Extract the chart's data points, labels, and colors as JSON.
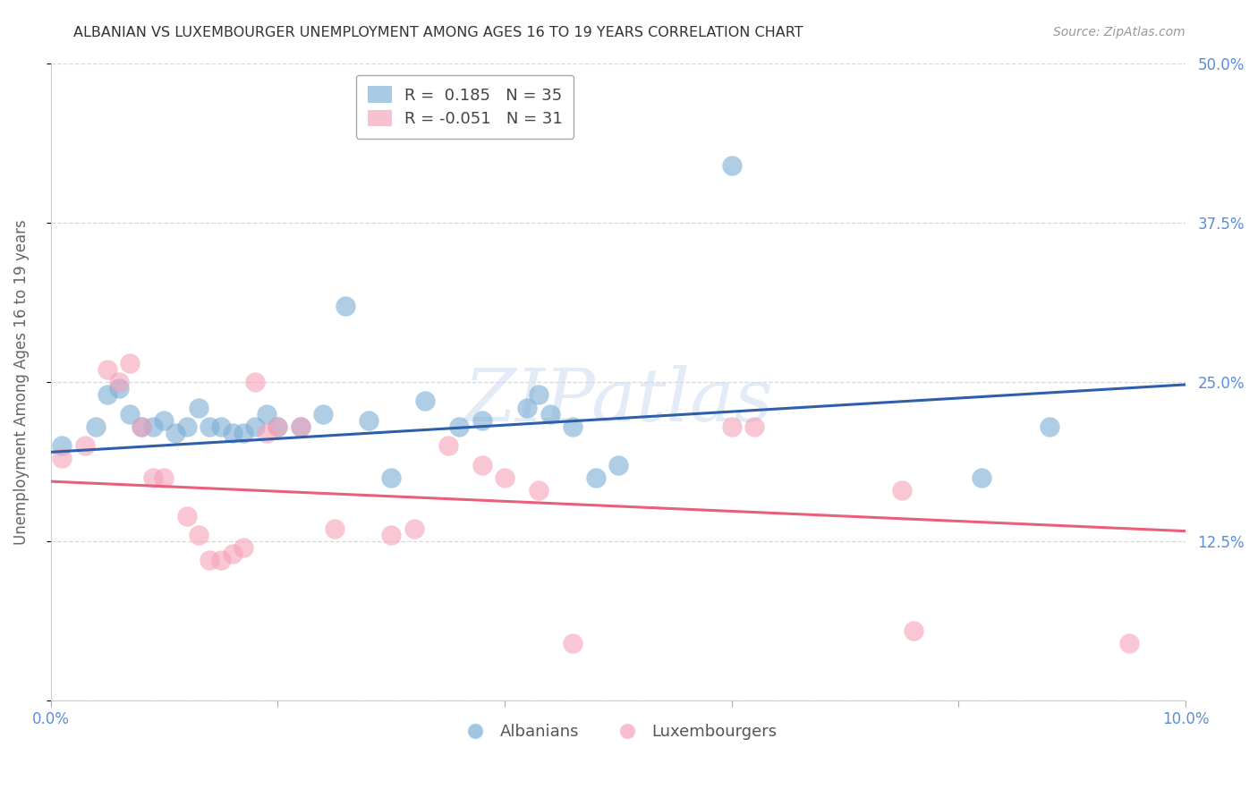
{
  "title": "ALBANIAN VS LUXEMBOURGER UNEMPLOYMENT AMONG AGES 16 TO 19 YEARS CORRELATION CHART",
  "source": "Source: ZipAtlas.com",
  "ylabel": "Unemployment Among Ages 16 to 19 years",
  "xlim": [
    0.0,
    0.1
  ],
  "ylim": [
    0.0,
    0.5
  ],
  "yticks": [
    0.0,
    0.125,
    0.25,
    0.375,
    0.5
  ],
  "ytick_labels": [
    "",
    "12.5%",
    "25.0%",
    "37.5%",
    "50.0%"
  ],
  "albanian_R": 0.185,
  "albanian_N": 35,
  "luxembourger_R": -0.051,
  "luxembourger_N": 31,
  "albanian_color": "#7aaed6",
  "luxembourger_color": "#f5a0b8",
  "albanian_line_color": "#2f5faa",
  "luxembourger_line_color": "#e8607a",
  "background_color": "#ffffff",
  "grid_color": "#d8d8d8",
  "title_color": "#333333",
  "axis_label_color": "#666666",
  "tick_label_color": "#5b8dd9",
  "watermark_color": "#ccddf0",
  "albanian_x": [
    0.001,
    0.004,
    0.005,
    0.006,
    0.007,
    0.008,
    0.009,
    0.01,
    0.011,
    0.012,
    0.013,
    0.014,
    0.015,
    0.016,
    0.017,
    0.018,
    0.019,
    0.02,
    0.022,
    0.024,
    0.026,
    0.028,
    0.03,
    0.033,
    0.036,
    0.038,
    0.042,
    0.043,
    0.044,
    0.046,
    0.048,
    0.05,
    0.06,
    0.082,
    0.088
  ],
  "albanian_y": [
    0.2,
    0.215,
    0.24,
    0.245,
    0.225,
    0.215,
    0.215,
    0.22,
    0.21,
    0.215,
    0.23,
    0.215,
    0.215,
    0.21,
    0.21,
    0.215,
    0.225,
    0.215,
    0.215,
    0.225,
    0.31,
    0.22,
    0.175,
    0.235,
    0.215,
    0.22,
    0.23,
    0.24,
    0.225,
    0.215,
    0.175,
    0.185,
    0.42,
    0.175,
    0.215
  ],
  "luxembourger_x": [
    0.001,
    0.003,
    0.005,
    0.006,
    0.007,
    0.008,
    0.009,
    0.01,
    0.012,
    0.013,
    0.014,
    0.015,
    0.016,
    0.017,
    0.018,
    0.019,
    0.02,
    0.022,
    0.025,
    0.03,
    0.032,
    0.035,
    0.038,
    0.04,
    0.043,
    0.046,
    0.06,
    0.062,
    0.075,
    0.076,
    0.095
  ],
  "luxembourger_y": [
    0.19,
    0.2,
    0.26,
    0.25,
    0.265,
    0.215,
    0.175,
    0.175,
    0.145,
    0.13,
    0.11,
    0.11,
    0.115,
    0.12,
    0.25,
    0.21,
    0.215,
    0.215,
    0.135,
    0.13,
    0.135,
    0.2,
    0.185,
    0.175,
    0.165,
    0.045,
    0.215,
    0.215,
    0.165,
    0.055,
    0.045
  ]
}
